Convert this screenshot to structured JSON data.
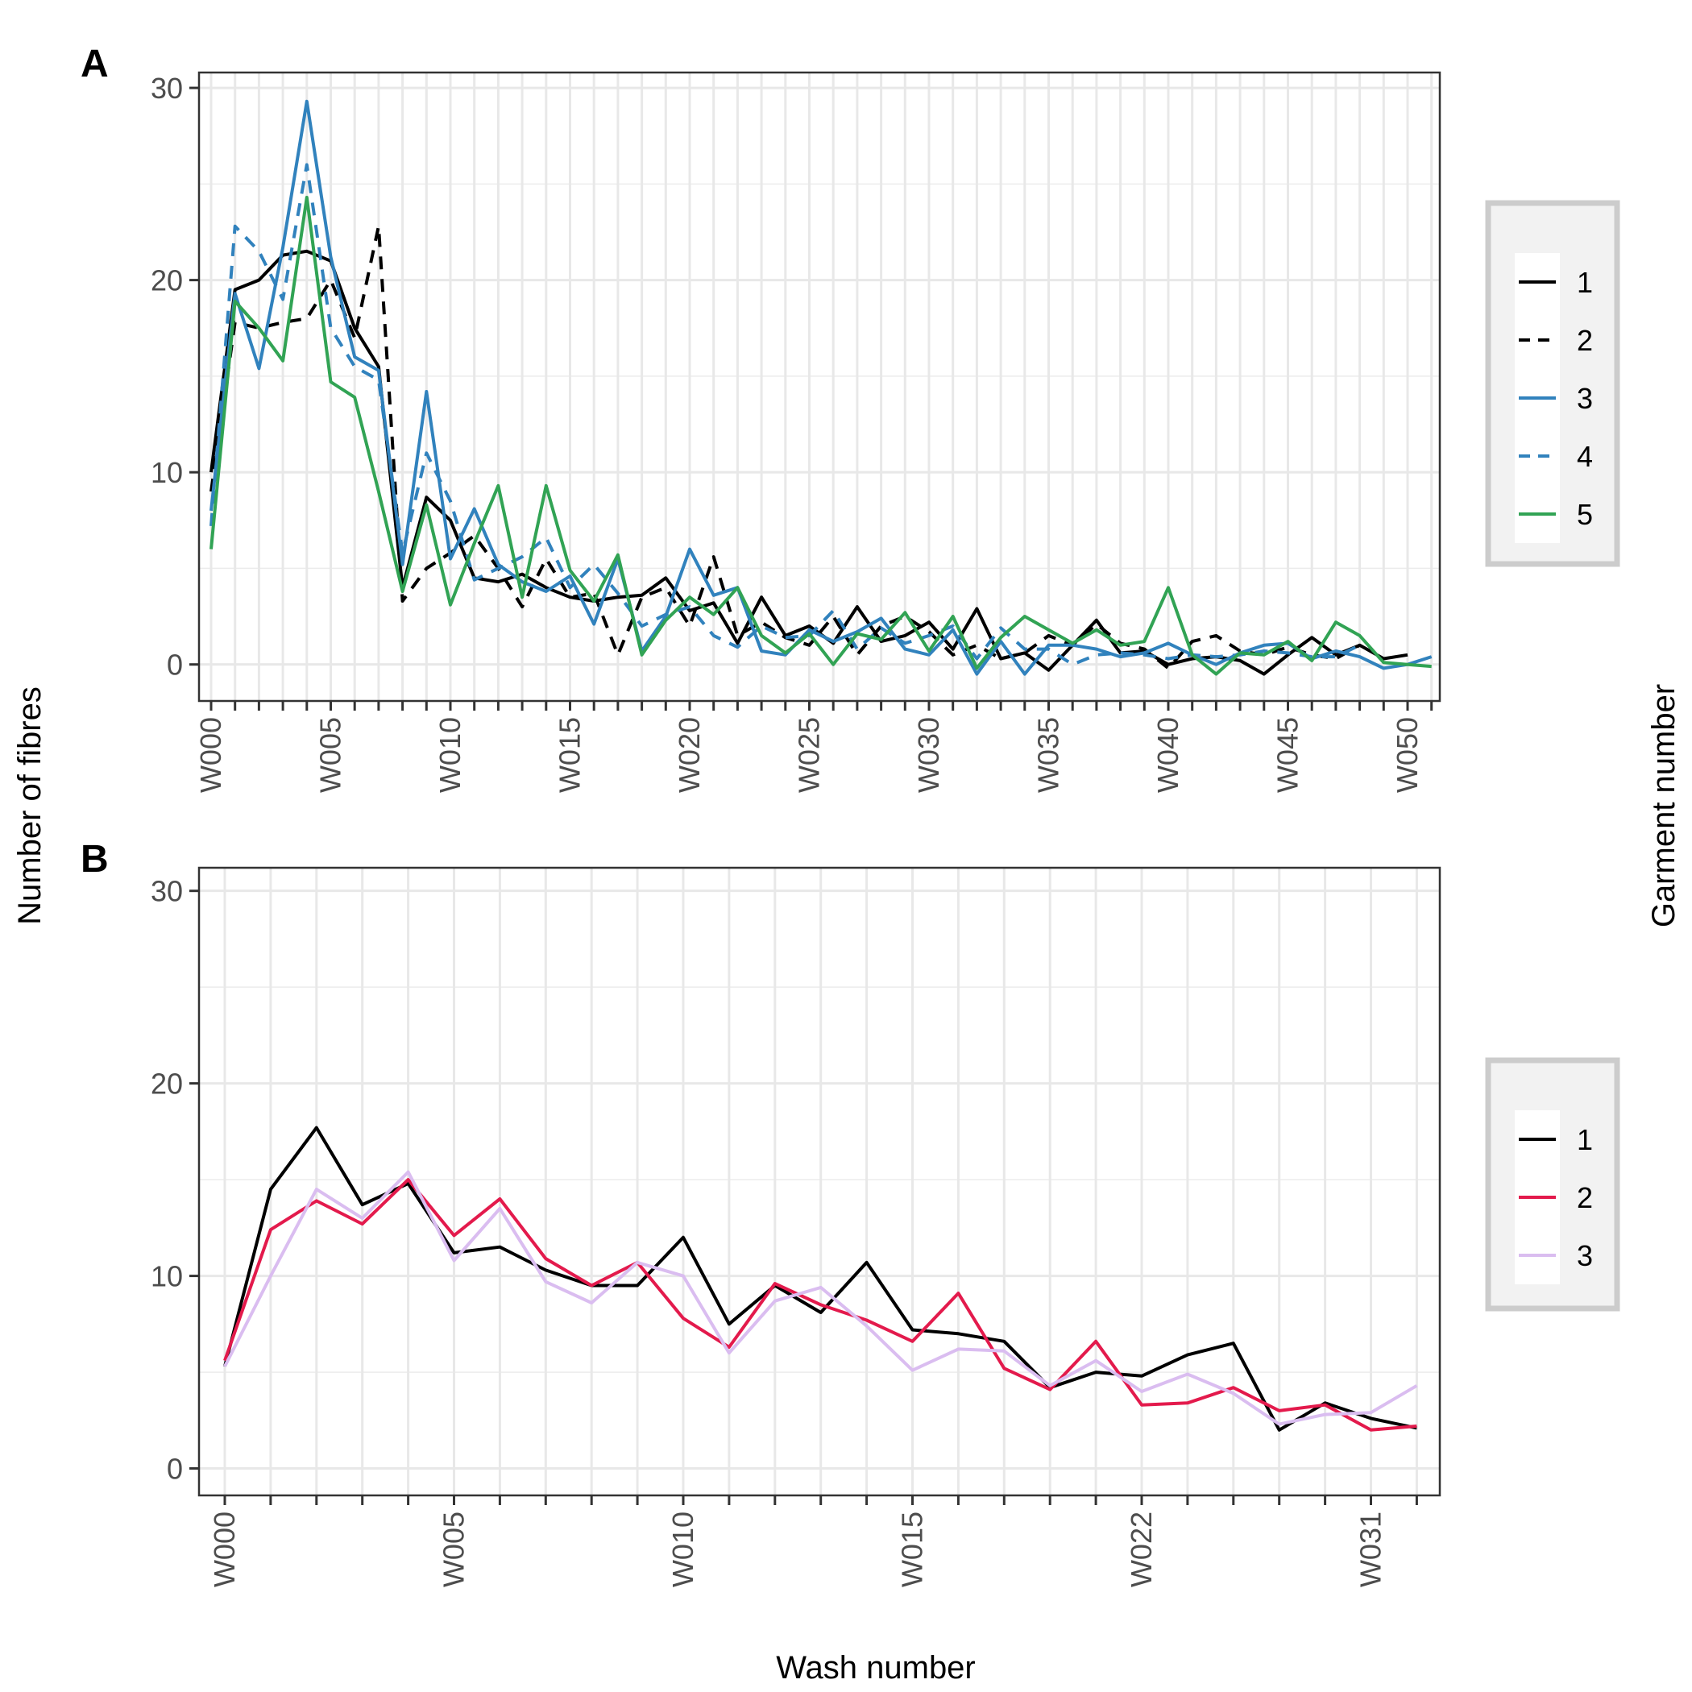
{
  "figure": {
    "ylabel": "Number of fibres",
    "xlabel": "Wash number",
    "legend_title": "Garment number"
  },
  "chart_data": [
    {
      "panel": "A",
      "type": "line",
      "ylim": [
        -1.9,
        30.8
      ],
      "yticks": [
        0,
        10,
        20,
        30
      ],
      "grid": true,
      "legend_placement": "right",
      "x_tick_labels": [
        "W000",
        "W005",
        "W010",
        "W015",
        "W020",
        "W025",
        "W030",
        "W035",
        "W040",
        "W045",
        "W050"
      ],
      "x_tick_positions": [
        0,
        5,
        10,
        15,
        20,
        25,
        30,
        35,
        40,
        45,
        50
      ],
      "series": [
        {
          "name": "1",
          "color": "#000000",
          "dash": "solid",
          "values": [
            10,
            19.5,
            20,
            21.3,
            21.5,
            21,
            17.5,
            15.5,
            4,
            8.7,
            7.5,
            4.5,
            4.3,
            4.7,
            4,
            3.5,
            3.3,
            3.5,
            3.6,
            4.5,
            2.8,
            3.2,
            1.1,
            3.5,
            1.5,
            2,
            1.1,
            3,
            1.2,
            1.5,
            2.2,
            0.8,
            2.9,
            0.3,
            0.6,
            -0.3,
            1,
            2.3,
            0.6,
            0.7,
            0,
            0.3,
            0.4,
            0.2,
            -0.5,
            0.5,
            1.4,
            0.5,
            1,
            0.3,
            0.5
          ]
        },
        {
          "name": "2",
          "color": "#000000",
          "dash": "dashed",
          "values": [
            9,
            17.8,
            17.5,
            17.8,
            18,
            20,
            17,
            22.8,
            3.3,
            5,
            5.8,
            6.7,
            5,
            3,
            5.5,
            3.5,
            3.7,
            0.5,
            3.5,
            4,
            2,
            5.6,
            1.5,
            2.2,
            1.4,
            1,
            2.5,
            0.5,
            2,
            2.5,
            1.7,
            0.5,
            1,
            0.3,
            0.6,
            1.5,
            1,
            2.1,
            1.1,
            0.8,
            -0.2,
            1.2,
            1.5,
            0.7,
            0.5,
            0.9,
            0.5,
            0.3,
            1
          ]
        },
        {
          "name": "3",
          "color": "#3182bd",
          "dash": "solid",
          "values": [
            8,
            19.3,
            15.4,
            21.7,
            29.3,
            21.2,
            16,
            15.3,
            5.2,
            14.2,
            5.5,
            8.1,
            5.2,
            4.3,
            3.8,
            4.6,
            2.1,
            5.5,
            0.7,
            2.5,
            6,
            3.6,
            4,
            0.7,
            0.5,
            1.8,
            1.2,
            1.7,
            2.4,
            0.8,
            0.5,
            1.8,
            -0.5,
            1.2,
            -0.5,
            1,
            1,
            0.8,
            0.4,
            0.6,
            1.1,
            0.5,
            0,
            0.6,
            1,
            1.1,
            0.3,
            0.7,
            0.4,
            -0.2,
            0,
            0.4
          ]
        },
        {
          "name": "4",
          "color": "#3182bd",
          "dash": "dashed",
          "values": [
            7.2,
            22.8,
            21.5,
            19,
            26,
            17.5,
            15.5,
            14.8,
            5.8,
            11,
            8.5,
            4.4,
            5,
            5.6,
            6.6,
            4,
            5.2,
            3.7,
            2,
            2.6,
            3,
            1.5,
            0.9,
            2,
            1.4,
            1.5,
            2.8,
            0.8,
            1.9,
            1.1,
            1.5,
            2,
            0.3,
            1.9,
            0.8,
            0.8,
            0,
            0.5,
            0.6,
            0.5,
            0.3,
            0.5,
            0.4,
            0.5,
            0.7,
            0.6,
            0.4,
            0.4,
            1
          ]
        },
        {
          "name": "5",
          "color": "#31a354",
          "dash": "solid",
          "values": [
            6,
            18.9,
            17.5,
            15.8,
            24.3,
            14.7,
            13.9,
            9,
            3.8,
            8.3,
            3.1,
            6.3,
            9.3,
            3.5,
            9.3,
            4.9,
            3.3,
            5.7,
            0.5,
            2.3,
            3.5,
            2.6,
            4,
            1.5,
            0.6,
            1.6,
            0,
            1.6,
            1.3,
            2.7,
            0.7,
            2.5,
            -0.2,
            1.4,
            2.5,
            1.8,
            1.1,
            1.8,
            1,
            1.2,
            4,
            0.5,
            -0.5,
            0.6,
            0.5,
            1.2,
            0.2,
            2.2,
            1.5,
            0.1,
            0,
            -0.1
          ]
        }
      ]
    },
    {
      "panel": "B",
      "type": "line",
      "ylim": [
        -1.4,
        31.2
      ],
      "yticks": [
        0,
        10,
        20,
        30
      ],
      "grid": true,
      "legend_placement": "right",
      "x_tick_labels": [
        "W000",
        "W005",
        "W010",
        "W015",
        "W022",
        "W031"
      ],
      "x_tick_positions": [
        0,
        5,
        10,
        15,
        20,
        25
      ],
      "series": [
        {
          "name": "1",
          "color": "#000000",
          "dash": "solid",
          "values": [
            5.3,
            14.5,
            17.7,
            13.7,
            14.8,
            11.2,
            11.5,
            10.3,
            9.5,
            9.5,
            12,
            7.5,
            9.5,
            8.1,
            10.7,
            7.2,
            7,
            6.6,
            4.2,
            5,
            4.8,
            5.9,
            6.5,
            2,
            3.4,
            2.6,
            2.1
          ]
        },
        {
          "name": "2",
          "color": "#e31a4c",
          "dash": "solid",
          "values": [
            5.6,
            12.4,
            13.9,
            12.7,
            15,
            12.1,
            14,
            10.9,
            9.5,
            10.7,
            7.8,
            6.3,
            9.6,
            8.5,
            7.7,
            6.6,
            9.1,
            5.2,
            4.1,
            6.6,
            3.3,
            3.4,
            4.2,
            3,
            3.3,
            2,
            2.2
          ]
        },
        {
          "name": "3",
          "color": "#dabdf0",
          "dash": "solid",
          "values": [
            5.3,
            10,
            14.5,
            13,
            15.4,
            10.8,
            13.5,
            9.7,
            8.6,
            10.7,
            10,
            6,
            8.7,
            9.4,
            7.4,
            5.1,
            6.2,
            6.1,
            4.3,
            5.6,
            4,
            4.9,
            3.9,
            2.3,
            2.8,
            2.9,
            4.3
          ]
        }
      ]
    }
  ]
}
